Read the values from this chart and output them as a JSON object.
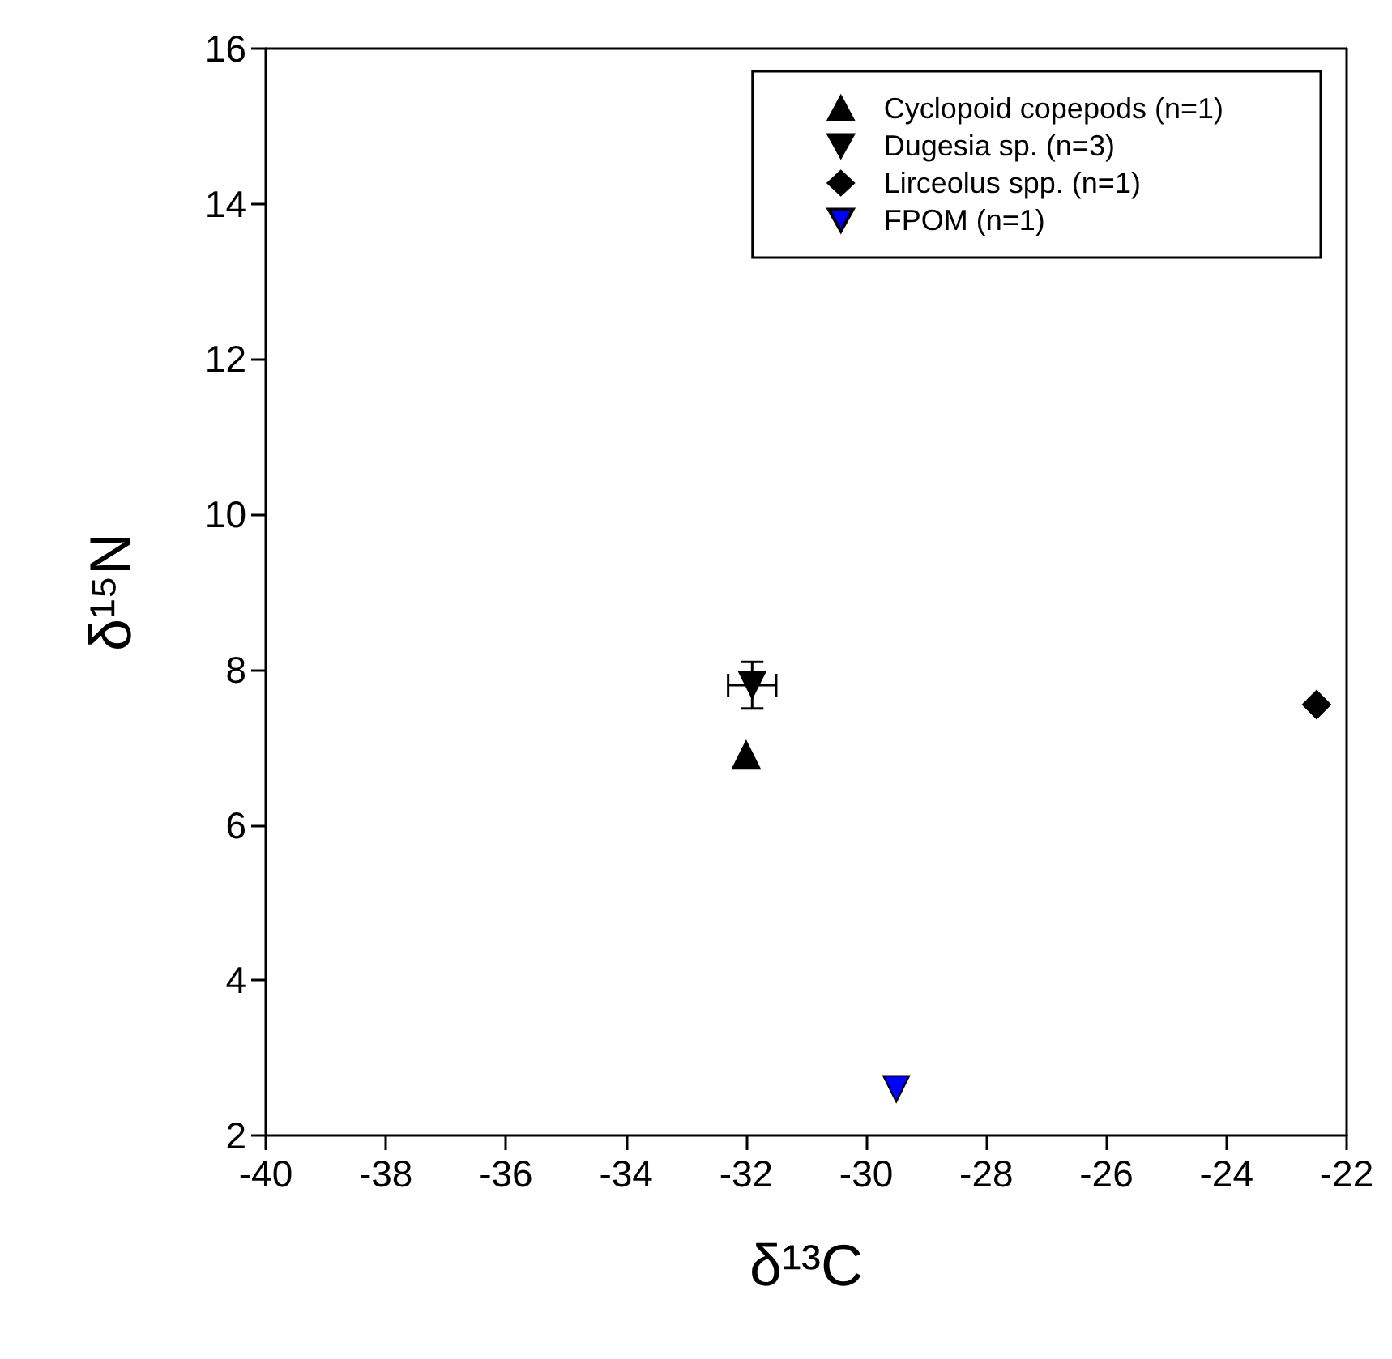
{
  "chart_data": {
    "type": "scatter",
    "xlabel": "δ¹³C",
    "ylabel": "δ¹⁵N",
    "xlim": [
      -40,
      -22
    ],
    "xticks": [
      -40,
      -38,
      -36,
      -34,
      -32,
      -30,
      -28,
      -26,
      -24,
      -22
    ],
    "ylim": [
      2,
      16
    ],
    "yticks": [
      2,
      4,
      6,
      8,
      10,
      12,
      14,
      16
    ],
    "grid": false,
    "legend": "top right",
    "series": [
      {
        "name": "Cyclopoid copepods (n=1)",
        "color": "#000000",
        "marker": "triangle",
        "x": [
          -32.0
        ],
        "values": [
          6.9
        ]
      },
      {
        "name": "Dugesia sp. (n=3)",
        "color": "#000000",
        "marker": "triangle-down",
        "x": [
          -31.9
        ],
        "values": [
          7.8
        ],
        "errors": [
          0.3
        ],
        "xerrors": [
          0.4
        ]
      },
      {
        "name": "Lirceolus spp. (n=1)",
        "color": "#000000",
        "marker": "diamond",
        "x": [
          -22.5
        ],
        "values": [
          7.55
        ]
      },
      {
        "name": "FPOM (n=1)",
        "color": "#0000ff",
        "marker": "triangle-down",
        "x": [
          -29.5
        ],
        "values": [
          2.6
        ]
      }
    ]
  }
}
